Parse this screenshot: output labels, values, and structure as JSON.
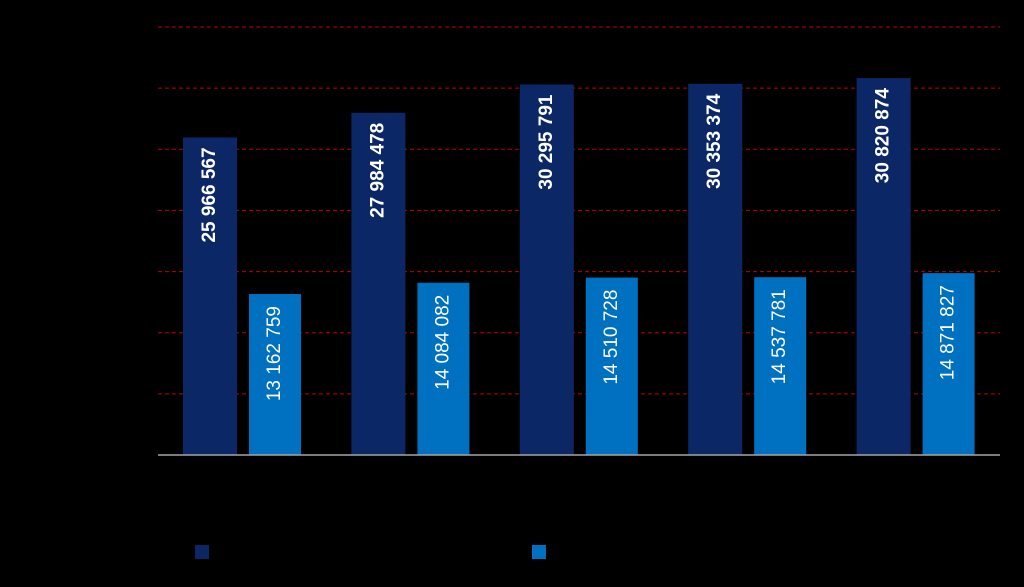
{
  "chart_data": {
    "type": "bar",
    "categories": [
      null,
      null,
      null,
      null,
      null
    ],
    "series": [
      {
        "color": "#0c2766",
        "values": [
          25966567,
          27984478,
          30295791,
          30353374,
          30820874
        ],
        "value_labels": [
          "25 966 567",
          "27 984 478",
          "30 295 791",
          "30 353 374",
          "30 820 874"
        ]
      },
      {
        "color": "#0070c0",
        "values": [
          13162759,
          14084082,
          14510728,
          14537781,
          14871827
        ],
        "value_labels": [
          "13 162 759",
          "14 084 082",
          "14 510 728",
          "14 537 781",
          "14 871 827"
        ]
      }
    ],
    "ylim": [
      0,
      35000000
    ],
    "yticks": [
      0,
      5000000,
      10000000,
      15000000,
      20000000,
      25000000,
      30000000,
      35000000
    ],
    "grid": true,
    "grid_color": "#c00000",
    "legend": "bottom"
  }
}
